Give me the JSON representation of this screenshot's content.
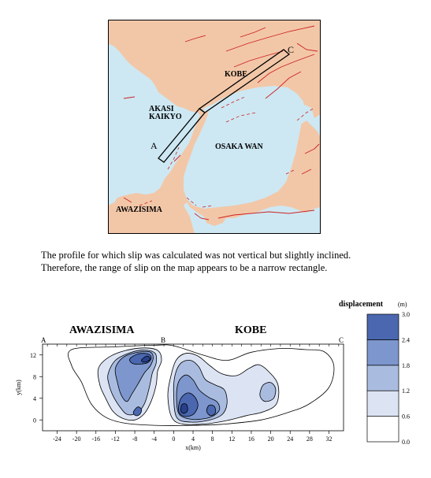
{
  "map": {
    "labels": {
      "kobe": "KOBE",
      "akasi": "AKASI",
      "kaikyo": "KAIKYO",
      "osaka_wan": "OSAKA WAN",
      "awazisima": "AWAZISIMA",
      "point_a": "A",
      "point_c": "C"
    },
    "colors": {
      "sea": "#cde8f3",
      "land": "#f2c7a8",
      "faults": "#cc2222",
      "border": "#000000"
    }
  },
  "caption": {
    "line1": "The profile for which slip was calculated was not vertical but slightly inclined.",
    "line2": "Therefore, the range of slip on the map appears to be a narrow rectangle."
  },
  "chart_data": {
    "type": "contour",
    "title_left": "AWAZISIMA",
    "title_right": "KOBE",
    "profile_points": [
      "A",
      "B",
      "C"
    ],
    "xlabel": "x(km)",
    "ylabel": "y(km)",
    "x_ticks": [
      "-24",
      "-20",
      "-16",
      "-12",
      "-8",
      "-4",
      "0",
      "4",
      "8",
      "12",
      "16",
      "20",
      "24",
      "28",
      "32"
    ],
    "y_ticks": [
      "0",
      "4",
      "8",
      "12"
    ],
    "xlim": [
      -27,
      35
    ],
    "ylim": [
      -2,
      14
    ],
    "legend": {
      "title": "displacement",
      "unit": "(m)",
      "levels": [
        "0.0",
        "0.6",
        "1.2",
        "1.8",
        "2.4",
        "3.0"
      ],
      "colors": [
        "#ffffff",
        "#dce4f4",
        "#a9bce0",
        "#7d96cd",
        "#4a67b0",
        "#27408e"
      ]
    },
    "patches": [
      {
        "level": 0,
        "name": "contour-outer",
        "pts": [
          [
            -21,
            13
          ],
          [
            -12,
            13.5
          ],
          [
            -4,
            13.8
          ],
          [
            0,
            13.7
          ],
          [
            6,
            12
          ],
          [
            11,
            11
          ],
          [
            16,
            12.5
          ],
          [
            22,
            13.2
          ],
          [
            27,
            13
          ],
          [
            31,
            12.6
          ],
          [
            33,
            10
          ],
          [
            32,
            6
          ],
          [
            28,
            3
          ],
          [
            24,
            1.5
          ],
          [
            18,
            0
          ],
          [
            10,
            -0.8
          ],
          [
            4,
            -1
          ],
          [
            -4,
            -1
          ],
          [
            -10,
            -0.6
          ],
          [
            -14,
            0.5
          ],
          [
            -17,
            3
          ],
          [
            -19,
            7
          ],
          [
            -21,
            10
          ]
        ]
      },
      {
        "level": 1,
        "name": "contour-west-0.6",
        "pts": [
          [
            -15.5,
            9.5
          ],
          [
            -13.5,
            11.5
          ],
          [
            -10,
            12.8
          ],
          [
            -6,
            13.3
          ],
          [
            -3.2,
            12.8
          ],
          [
            -2.5,
            11
          ],
          [
            -3.3,
            9
          ],
          [
            -3.6,
            6.5
          ],
          [
            -4.6,
            3.5
          ],
          [
            -6,
            1.2
          ],
          [
            -8,
            0
          ],
          [
            -10.5,
            0.3
          ],
          [
            -12.5,
            1.6
          ],
          [
            -14,
            4
          ],
          [
            -15.2,
            6.5
          ]
        ]
      },
      {
        "level": 1,
        "name": "contour-east-0.6",
        "pts": [
          [
            -1.2,
            4.5
          ],
          [
            -0.6,
            8
          ],
          [
            0.5,
            11
          ],
          [
            2.5,
            12.3
          ],
          [
            5,
            11.8
          ],
          [
            7.5,
            10
          ],
          [
            10,
            8.5
          ],
          [
            13,
            8.2
          ],
          [
            15.5,
            9.5
          ],
          [
            17.5,
            10.2
          ],
          [
            19.5,
            9
          ],
          [
            21.5,
            6.5
          ],
          [
            21.2,
            3
          ],
          [
            18.5,
            1.5
          ],
          [
            15,
            0.8
          ],
          [
            11.5,
            0
          ],
          [
            7,
            -0.7
          ],
          [
            2,
            -0.8
          ],
          [
            -0.4,
            0.5
          ]
        ]
      },
      {
        "level": 2,
        "name": "contour-west-1.2",
        "pts": [
          [
            -13.5,
            8.5
          ],
          [
            -12,
            11
          ],
          [
            -9,
            12.4
          ],
          [
            -6,
            12.9
          ],
          [
            -3.8,
            12.3
          ],
          [
            -3.6,
            10.5
          ],
          [
            -4.4,
            8.6
          ],
          [
            -5,
            6
          ],
          [
            -6,
            3
          ],
          [
            -7.5,
            1.3
          ],
          [
            -9.5,
            1
          ],
          [
            -11,
            2.3
          ],
          [
            -12.5,
            4.5
          ],
          [
            -13.3,
            6.5
          ]
        ]
      },
      {
        "level": 2,
        "name": "contour-east-1.2",
        "pts": [
          [
            0,
            5
          ],
          [
            0.3,
            8.3
          ],
          [
            1.5,
            10.5
          ],
          [
            3.5,
            11
          ],
          [
            5.2,
            9.8
          ],
          [
            6.5,
            7.5
          ],
          [
            8.5,
            6.5
          ],
          [
            10.5,
            5.5
          ],
          [
            11,
            3
          ],
          [
            10,
            1
          ],
          [
            7.5,
            0
          ],
          [
            3.5,
            -0.4
          ],
          [
            0.6,
            0.5
          ]
        ]
      },
      {
        "level": 2,
        "name": "contour-east-small",
        "pts": [
          [
            17.8,
            5
          ],
          [
            18.5,
            6.5
          ],
          [
            20,
            6.9
          ],
          [
            21,
            5.8
          ],
          [
            20.6,
            4
          ],
          [
            19,
            3.4
          ],
          [
            18,
            4
          ]
        ]
      },
      {
        "level": 3,
        "name": "contour-west-1.8",
        "pts": [
          [
            -12,
            9.5
          ],
          [
            -10.5,
            11.5
          ],
          [
            -8,
            12.4
          ],
          [
            -5,
            12.6
          ],
          [
            -4.2,
            11.6
          ],
          [
            -4.8,
            10
          ],
          [
            -6,
            8.7
          ],
          [
            -7.3,
            6.7
          ],
          [
            -8.6,
            4.8
          ],
          [
            -9.6,
            3.4
          ],
          [
            -10.8,
            4.6
          ],
          [
            -11.6,
            7
          ]
        ]
      },
      {
        "level": 3,
        "name": "contour-east-1.8",
        "pts": [
          [
            0.6,
            4
          ],
          [
            1,
            7
          ],
          [
            2.5,
            8.3
          ],
          [
            4,
            7.4
          ],
          [
            5.3,
            5.5
          ],
          [
            7.2,
            4.2
          ],
          [
            9,
            3.3
          ],
          [
            9.4,
            1.8
          ],
          [
            7.6,
            0.5
          ],
          [
            4,
            0.1
          ],
          [
            1.2,
            1
          ]
        ]
      },
      {
        "level": 4,
        "name": "contour-west-2.4",
        "pts": [
          [
            -9,
            11.3
          ],
          [
            -7.3,
            12.2
          ],
          [
            -5.3,
            12.2
          ],
          [
            -4.6,
            11.5
          ],
          [
            -5.3,
            10.6
          ],
          [
            -7,
            10.3
          ],
          [
            -8.6,
            10.5
          ]
        ]
      },
      {
        "level": 4,
        "name": "contour-west-low-2.4",
        "pts": [
          [
            -8.3,
            1.4
          ],
          [
            -7.4,
            2.4
          ],
          [
            -6.6,
            1.9
          ],
          [
            -7,
            1
          ],
          [
            -7.8,
            0.8
          ]
        ]
      },
      {
        "level": 4,
        "name": "contour-east-2.4",
        "pts": [
          [
            1,
            1.8
          ],
          [
            1.5,
            4
          ],
          [
            3,
            5
          ],
          [
            4.4,
            4.2
          ],
          [
            5,
            2.6
          ],
          [
            4,
            1
          ],
          [
            2,
            0.7
          ]
        ]
      },
      {
        "level": 4,
        "name": "contour-east-small-2.4",
        "pts": [
          [
            6.8,
            1.6
          ],
          [
            7.3,
            2.7
          ],
          [
            8.4,
            2.5
          ],
          [
            8.6,
            1.3
          ],
          [
            7.6,
            0.8
          ]
        ]
      },
      {
        "level": 5,
        "name": "contour-west-3.0",
        "pts": [
          [
            -6.6,
            11.1
          ],
          [
            -5.5,
            11.8
          ],
          [
            -4.8,
            11.3
          ],
          [
            -5.4,
            10.8
          ],
          [
            -6.3,
            10.7
          ]
        ]
      },
      {
        "level": 5,
        "name": "contour-east-3.0",
        "pts": [
          [
            1.5,
            1.6
          ],
          [
            1.7,
            2.8
          ],
          [
            2.6,
            2.9
          ],
          [
            2.9,
            1.8
          ],
          [
            2.2,
            1.2
          ]
        ]
      }
    ]
  }
}
